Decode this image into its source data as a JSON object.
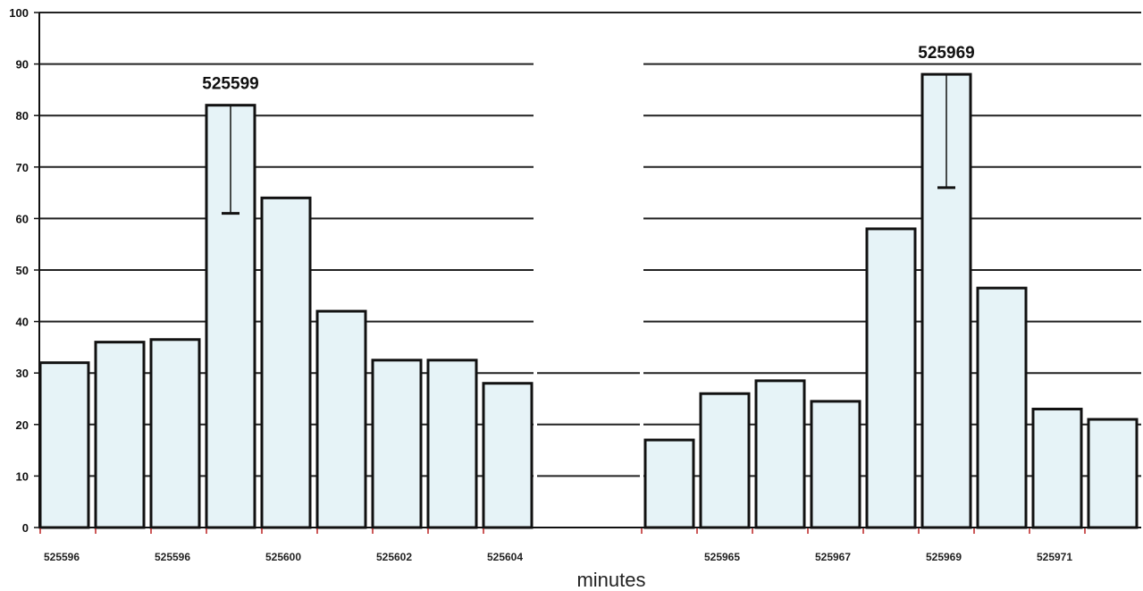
{
  "chart_data": {
    "type": "bar",
    "xlabel": "minutes",
    "ylabel": "",
    "ylim": [
      0,
      100
    ],
    "grid": true,
    "yticks": [
      0,
      10,
      20,
      30,
      40,
      50,
      60,
      70,
      80,
      90,
      100
    ],
    "colors": {
      "bar_fill": "#e6f3f7",
      "bar_stroke": "#111111",
      "grid": "#222222"
    },
    "bars": [
      {
        "value": 32,
        "label": "525596"
      },
      {
        "value": 36,
        "label": ""
      },
      {
        "value": 36.5,
        "label": "525596"
      },
      {
        "value": 82,
        "label": ""
      },
      {
        "value": 64,
        "label": "525600"
      },
      {
        "value": 42,
        "label": ""
      },
      {
        "value": 32.5,
        "label": "525602"
      },
      {
        "value": 32.5,
        "label": ""
      },
      {
        "value": 28,
        "label": "525604"
      },
      {
        "value": 17,
        "label": ""
      },
      {
        "value": 26,
        "label": "525965"
      },
      {
        "value": 28.5,
        "label": ""
      },
      {
        "value": 24.5,
        "label": "525967"
      },
      {
        "value": 58,
        "label": ""
      },
      {
        "value": 88,
        "label": "525969"
      },
      {
        "value": 46.5,
        "label": ""
      },
      {
        "value": 23,
        "label": "525971"
      },
      {
        "value": 21,
        "label": ""
      }
    ],
    "annotations": [
      {
        "text": "525599",
        "bar_index": 3,
        "whisker_low": 61
      },
      {
        "text": "525969",
        "bar_index": 14,
        "whisker_low": 66
      }
    ]
  }
}
